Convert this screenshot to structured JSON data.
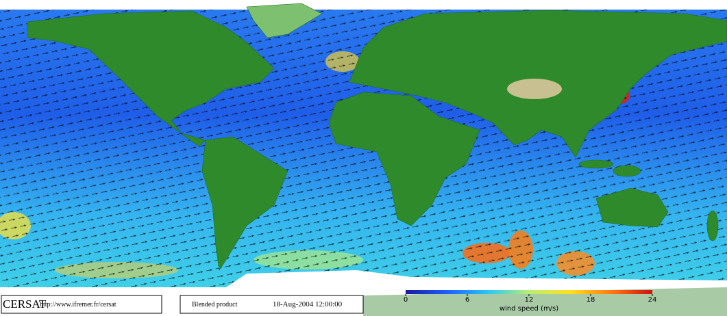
{
  "footer": {
    "logo": "CERSAT",
    "url": "http://www.ifremer.fr/cersat",
    "product": "Blended product",
    "datetime": "18-Aug-2004 12:00:00"
  },
  "colorbar": {
    "label": "wind speed (m/s)",
    "range": [
      0,
      24
    ],
    "ticks": [
      0,
      6,
      12,
      18,
      24
    ],
    "colors": [
      "#1a1aa0",
      "#1f5cff",
      "#27c8f5",
      "#b8f070",
      "#ffe020",
      "#ff7a10",
      "#d01010"
    ]
  }
}
